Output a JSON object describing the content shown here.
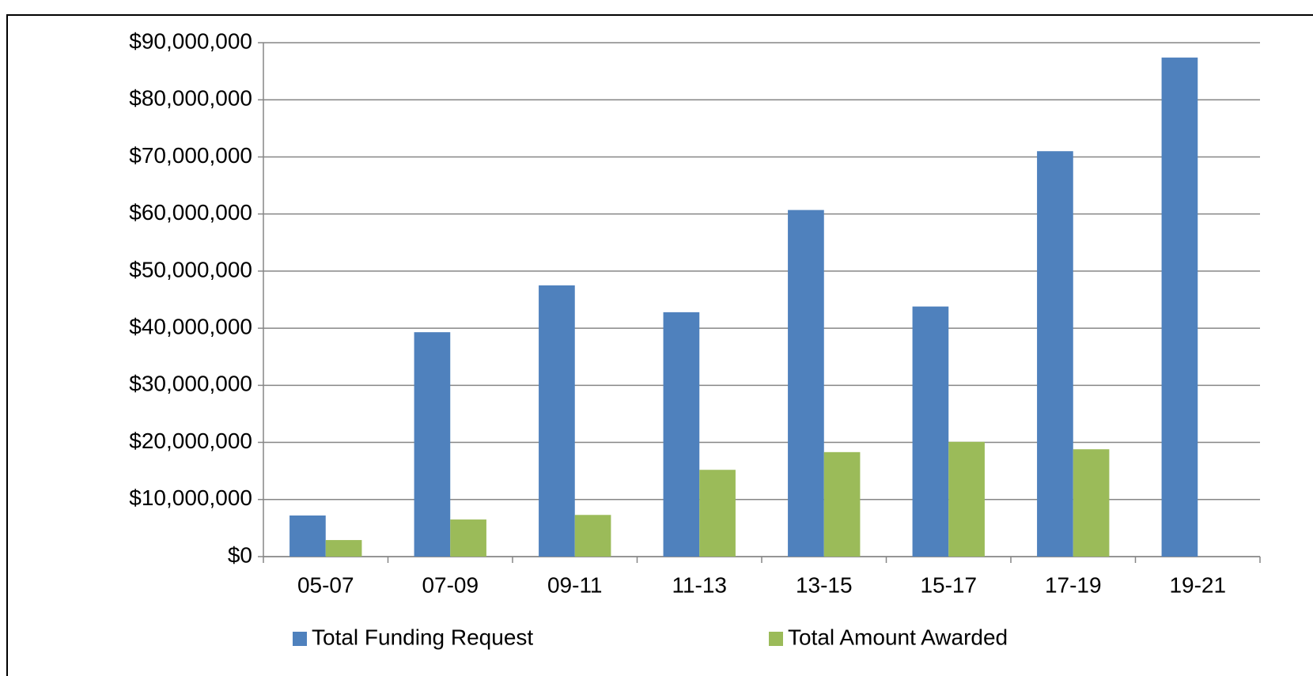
{
  "chart_data": {
    "type": "bar",
    "categories": [
      "05-07",
      "07-09",
      "09-11",
      "11-13",
      "13-15",
      "15-17",
      "17-19",
      "19-21"
    ],
    "series": [
      {
        "name": "Total Funding Request",
        "color": "#4f81bd",
        "values": [
          7200000,
          39300000,
          47500000,
          42800000,
          60700000,
          43800000,
          71000000,
          87400000
        ]
      },
      {
        "name": "Total Amount Awarded",
        "color": "#9bbb59",
        "values": [
          2900000,
          6500000,
          7300000,
          15200000,
          18300000,
          20100000,
          18800000,
          null
        ]
      }
    ],
    "ylim": [
      0,
      90000000
    ],
    "yticks": [
      {
        "value": 0,
        "label": "$0"
      },
      {
        "value": 10000000,
        "label": "$10,000,000"
      },
      {
        "value": 20000000,
        "label": "$20,000,000"
      },
      {
        "value": 30000000,
        "label": "$30,000,000"
      },
      {
        "value": 40000000,
        "label": "$40,000,000"
      },
      {
        "value": 50000000,
        "label": "$50,000,000"
      },
      {
        "value": 60000000,
        "label": "$60,000,000"
      },
      {
        "value": 70000000,
        "label": "$70,000,000"
      },
      {
        "value": 80000000,
        "label": "$80,000,000"
      },
      {
        "value": 90000000,
        "label": "$90,000,000"
      }
    ],
    "grid": true,
    "legend": "bottom"
  }
}
